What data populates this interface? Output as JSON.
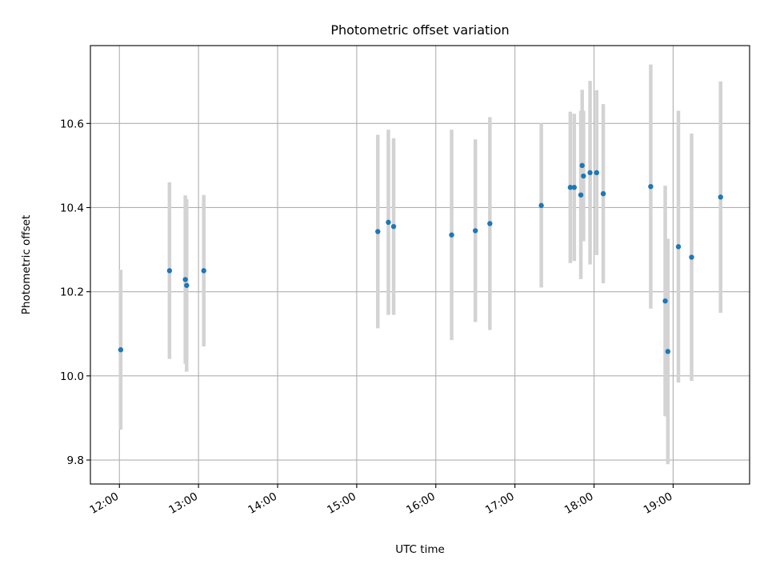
{
  "chart_data": {
    "type": "scatter",
    "title": "Photometric offset variation",
    "xlabel": "UTC time",
    "ylabel": "Photometric offset",
    "x_unit": "UTC time",
    "xlim": [
      "11:38",
      "19:58"
    ],
    "ylim": [
      9.743,
      10.785
    ],
    "grid": true,
    "x_ticks": [
      "12:00",
      "13:00",
      "14:00",
      "15:00",
      "16:00",
      "17:00",
      "18:00",
      "19:00"
    ],
    "y_ticks": [
      "9.8",
      "10.0",
      "10.2",
      "10.4",
      "10.6"
    ],
    "marker_color": "#1f77b4",
    "errorbar_color": "#d3d3d3",
    "series": [
      {
        "points": [
          {
            "x": "12:01",
            "y": 10.062,
            "err": 0.19
          },
          {
            "x": "12:38",
            "y": 10.25,
            "err": 0.21
          },
          {
            "x": "12:50",
            "y": 10.229,
            "err": 0.2
          },
          {
            "x": "12:51",
            "y": 10.215,
            "err": 0.205
          },
          {
            "x": "13:04",
            "y": 10.25,
            "err": 0.18
          },
          {
            "x": "15:16",
            "y": 10.343,
            "err": 0.23
          },
          {
            "x": "15:24",
            "y": 10.365,
            "err": 0.22
          },
          {
            "x": "15:28",
            "y": 10.355,
            "err": 0.21
          },
          {
            "x": "16:12",
            "y": 10.335,
            "err": 0.25
          },
          {
            "x": "16:30",
            "y": 10.345,
            "err": 0.217
          },
          {
            "x": "16:41",
            "y": 10.362,
            "err": 0.253
          },
          {
            "x": "17:20",
            "y": 10.405,
            "err": 0.195
          },
          {
            "x": "17:42",
            "y": 10.448,
            "err": 0.18
          },
          {
            "x": "17:45",
            "y": 10.448,
            "err": 0.175
          },
          {
            "x": "17:50",
            "y": 10.43,
            "err": 0.2
          },
          {
            "x": "17:51",
            "y": 10.5,
            "err": 0.18
          },
          {
            "x": "17:52",
            "y": 10.475,
            "err": 0.155
          },
          {
            "x": "17:57",
            "y": 10.483,
            "err": 0.218
          },
          {
            "x": "18:02",
            "y": 10.483,
            "err": 0.196
          },
          {
            "x": "18:07",
            "y": 10.433,
            "err": 0.213
          },
          {
            "x": "18:43",
            "y": 10.45,
            "err": 0.29
          },
          {
            "x": "18:54",
            "y": 10.178,
            "err": 0.274
          },
          {
            "x": "18:56",
            "y": 10.058,
            "err": 0.268
          },
          {
            "x": "19:04",
            "y": 10.307,
            "err": 0.323
          },
          {
            "x": "19:14",
            "y": 10.282,
            "err": 0.294
          },
          {
            "x": "19:36",
            "y": 10.425,
            "err": 0.275
          }
        ]
      }
    ]
  }
}
